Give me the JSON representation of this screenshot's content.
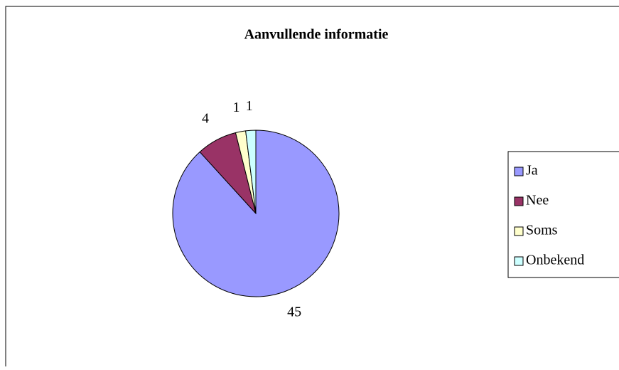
{
  "chart_data": {
    "type": "pie",
    "title": "Aanvullende informatie",
    "categories": [
      "Ja",
      "Nee",
      "Soms",
      "Onbekend"
    ],
    "values": [
      45,
      4,
      1,
      1
    ],
    "colors": [
      "#9999ff",
      "#993366",
      "#ffffcc",
      "#ccffff"
    ],
    "legend": "right"
  }
}
